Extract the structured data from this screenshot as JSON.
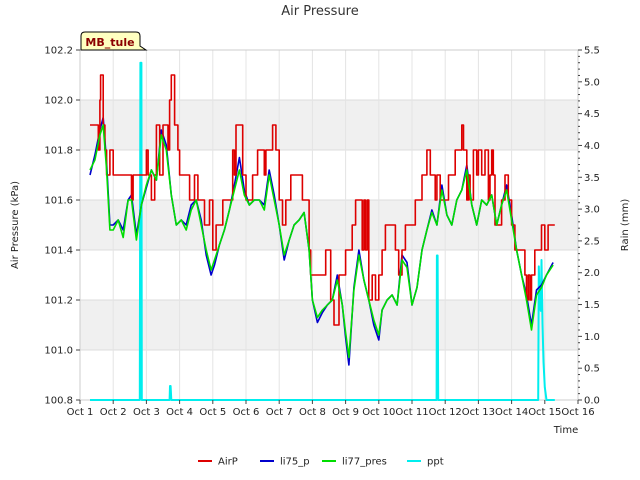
{
  "chart_data": {
    "type": "line",
    "title": "Air Pressure",
    "xlabel": "Time",
    "ylabel": "Air Pressure (kPa)",
    "y2label": "Rain (mm)",
    "site_label": "MB_tule",
    "xlim": [
      1,
      16
    ],
    "ylim": [
      100.8,
      102.2
    ],
    "y2lim": [
      0.0,
      5.5
    ],
    "x_ticks": [
      {
        "value": 1,
        "label": "Oct 1"
      },
      {
        "value": 2,
        "label": "Oct 2"
      },
      {
        "value": 3,
        "label": "Oct 3"
      },
      {
        "value": 4,
        "label": "Oct 4"
      },
      {
        "value": 5,
        "label": "Oct 5"
      },
      {
        "value": 6,
        "label": "Oct 6"
      },
      {
        "value": 7,
        "label": "Oct 7"
      },
      {
        "value": 8,
        "label": "Oct 8"
      },
      {
        "value": 9,
        "label": "Oct 9"
      },
      {
        "value": 10,
        "label": "Oct 10"
      },
      {
        "value": 11,
        "label": "Oct 11"
      },
      {
        "value": 12,
        "label": "Oct 12"
      },
      {
        "value": 13,
        "label": "Oct 13"
      },
      {
        "value": 14,
        "label": "Oct 14"
      },
      {
        "value": 15,
        "label": "Oct 15"
      },
      {
        "value": 16,
        "label": "Oct 16"
      }
    ],
    "y_ticks": [
      "100.8",
      "101.0",
      "101.2",
      "101.4",
      "101.6",
      "101.8",
      "102.0",
      "102.2"
    ],
    "y2_ticks": [
      "0.0",
      "0.5",
      "1.0",
      "1.5",
      "2.0",
      "2.5",
      "3.0",
      "3.5",
      "4.0",
      "4.5",
      "5.0",
      "5.5"
    ],
    "grid": "horizontal bands",
    "legend_position": "bottom-center",
    "series": [
      {
        "name": "AirP",
        "color": "#dd0000",
        "axis": "left",
        "step": true,
        "x": [
          1.3,
          1.5,
          1.55,
          1.6,
          1.62,
          1.7,
          1.75,
          1.8,
          1.9,
          2.0,
          2.5,
          2.55,
          2.6,
          3.0,
          3.05,
          3.15,
          3.25,
          3.3,
          3.4,
          3.5,
          3.65,
          3.7,
          3.75,
          3.85,
          3.95,
          4.0,
          4.3,
          4.45,
          4.55,
          4.7,
          4.75,
          4.9,
          5.0,
          5.1,
          5.15,
          5.3,
          5.4,
          5.6,
          5.65,
          5.7,
          5.75,
          5.9,
          6.0,
          6.2,
          6.35,
          6.55,
          6.6,
          6.8,
          6.9,
          7.0,
          7.1,
          7.2,
          7.35,
          7.5,
          7.7,
          7.9,
          7.95,
          8.2,
          8.4,
          8.55,
          8.65,
          8.8,
          8.9,
          9.0,
          9.2,
          9.3,
          9.5,
          9.55,
          9.6,
          9.65,
          9.7,
          9.8,
          9.9,
          10.0,
          10.1,
          10.2,
          10.4,
          10.5,
          10.6,
          10.7,
          10.8,
          11.0,
          11.1,
          11.3,
          11.45,
          11.55,
          11.7,
          11.75,
          11.85,
          12.0,
          12.1,
          12.3,
          12.5,
          12.55,
          12.65,
          12.7,
          12.75,
          12.85,
          12.95,
          13.0,
          13.1,
          13.2,
          13.3,
          13.35,
          13.4,
          13.45,
          13.5,
          13.7,
          13.8,
          13.9,
          14.0,
          14.1,
          14.2,
          14.4,
          14.45,
          14.5,
          14.55,
          14.6,
          14.7,
          14.8,
          14.9,
          15.0,
          15.1,
          15.3
        ],
        "y": [
          101.9,
          101.9,
          101.8,
          102.0,
          102.1,
          101.9,
          101.8,
          101.7,
          101.8,
          101.7,
          101.7,
          101.6,
          101.7,
          101.8,
          101.7,
          101.6,
          101.7,
          101.9,
          101.7,
          101.9,
          101.8,
          102.0,
          102.1,
          101.9,
          101.8,
          101.7,
          101.6,
          101.7,
          101.6,
          101.6,
          101.5,
          101.6,
          101.4,
          101.5,
          101.5,
          101.6,
          101.6,
          101.8,
          101.7,
          101.9,
          101.9,
          101.7,
          101.6,
          101.7,
          101.8,
          101.7,
          101.8,
          101.9,
          101.8,
          101.6,
          101.5,
          101.6,
          101.7,
          101.7,
          101.6,
          101.4,
          101.3,
          101.3,
          101.4,
          101.2,
          101.1,
          101.3,
          101.3,
          101.4,
          101.5,
          101.6,
          101.4,
          101.6,
          101.4,
          101.6,
          101.2,
          101.3,
          101.2,
          101.3,
          101.4,
          101.5,
          101.5,
          101.4,
          101.3,
          101.4,
          101.5,
          101.5,
          101.6,
          101.7,
          101.8,
          101.7,
          101.6,
          101.7,
          101.6,
          101.6,
          101.7,
          101.8,
          101.9,
          101.8,
          101.6,
          101.7,
          101.6,
          101.8,
          101.7,
          101.8,
          101.7,
          101.8,
          101.6,
          101.7,
          101.8,
          101.7,
          101.5,
          101.6,
          101.7,
          101.6,
          101.5,
          101.4,
          101.4,
          101.3,
          101.2,
          101.3,
          101.2,
          101.3,
          101.4,
          101.4,
          101.5,
          101.4,
          101.5,
          101.5
        ]
      },
      {
        "name": "li75_p",
        "color": "#0000cc",
        "axis": "left",
        "step": false,
        "x": [
          1.3,
          1.45,
          1.6,
          1.7,
          1.8,
          1.9,
          2.0,
          2.15,
          2.3,
          2.45,
          2.55,
          2.7,
          2.85,
          3.0,
          3.15,
          3.3,
          3.45,
          3.6,
          3.75,
          3.9,
          4.05,
          4.2,
          4.35,
          4.5,
          4.65,
          4.8,
          4.95,
          5.05,
          5.2,
          5.35,
          5.5,
          5.65,
          5.8,
          5.95,
          6.1,
          6.25,
          6.4,
          6.55,
          6.7,
          6.85,
          7.0,
          7.15,
          7.3,
          7.45,
          7.6,
          7.75,
          7.9,
          8.0,
          8.15,
          8.3,
          8.45,
          8.6,
          8.75,
          8.9,
          9.0,
          9.1,
          9.25,
          9.4,
          9.55,
          9.7,
          9.85,
          10.0,
          10.1,
          10.25,
          10.4,
          10.55,
          10.7,
          10.85,
          11.0,
          11.15,
          11.3,
          11.45,
          11.6,
          11.75,
          11.9,
          12.05,
          12.2,
          12.35,
          12.5,
          12.65,
          12.8,
          12.95,
          13.1,
          13.25,
          13.4,
          13.55,
          13.7,
          13.85,
          14.0,
          14.15,
          14.3,
          14.45,
          14.6,
          14.75,
          14.9,
          15.05,
          15.25
        ],
        "y": [
          101.7,
          101.78,
          101.88,
          101.93,
          101.75,
          101.5,
          101.5,
          101.52,
          101.48,
          101.6,
          101.62,
          101.46,
          101.58,
          101.65,
          101.72,
          101.68,
          101.88,
          101.82,
          101.62,
          101.5,
          101.52,
          101.5,
          101.58,
          101.6,
          101.52,
          101.38,
          101.3,
          101.34,
          101.42,
          101.48,
          101.56,
          101.66,
          101.77,
          101.64,
          101.58,
          101.6,
          101.6,
          101.58,
          101.72,
          101.62,
          101.5,
          101.36,
          101.44,
          101.5,
          101.52,
          101.55,
          101.4,
          101.2,
          101.11,
          101.15,
          101.18,
          101.2,
          101.3,
          101.18,
          101.05,
          100.94,
          101.25,
          101.4,
          101.28,
          101.2,
          101.1,
          101.04,
          101.16,
          101.2,
          101.22,
          101.18,
          101.38,
          101.35,
          101.18,
          101.25,
          101.4,
          101.48,
          101.56,
          101.5,
          101.66,
          101.54,
          101.5,
          101.6,
          101.64,
          101.74,
          101.58,
          101.5,
          101.6,
          101.58,
          101.62,
          101.5,
          101.58,
          101.66,
          101.54,
          101.4,
          101.3,
          101.22,
          101.1,
          101.24,
          101.26,
          101.3,
          101.35
        ]
      },
      {
        "name": "li77_pres",
        "color": "#00dd00",
        "axis": "left",
        "step": false,
        "x": [
          1.3,
          1.45,
          1.6,
          1.7,
          1.8,
          1.9,
          2.0,
          2.15,
          2.3,
          2.45,
          2.55,
          2.7,
          2.85,
          3.0,
          3.15,
          3.3,
          3.45,
          3.6,
          3.75,
          3.9,
          4.05,
          4.2,
          4.35,
          4.5,
          4.65,
          4.8,
          4.95,
          5.05,
          5.2,
          5.35,
          5.5,
          5.65,
          5.8,
          5.95,
          6.1,
          6.25,
          6.4,
          6.55,
          6.7,
          6.85,
          7.0,
          7.15,
          7.3,
          7.45,
          7.6,
          7.75,
          7.9,
          8.0,
          8.15,
          8.3,
          8.45,
          8.6,
          8.75,
          8.9,
          9.0,
          9.1,
          9.25,
          9.4,
          9.55,
          9.7,
          9.85,
          10.0,
          10.1,
          10.25,
          10.4,
          10.55,
          10.7,
          10.85,
          11.0,
          11.15,
          11.3,
          11.45,
          11.6,
          11.75,
          11.9,
          12.05,
          12.2,
          12.35,
          12.5,
          12.65,
          12.8,
          12.95,
          13.1,
          13.25,
          13.4,
          13.55,
          13.7,
          13.85,
          14.0,
          14.15,
          14.3,
          14.45,
          14.6,
          14.75,
          14.9,
          15.05,
          15.25
        ],
        "y": [
          101.72,
          101.76,
          101.86,
          101.9,
          101.72,
          101.48,
          101.48,
          101.52,
          101.45,
          101.6,
          101.6,
          101.44,
          101.58,
          101.66,
          101.72,
          101.68,
          101.86,
          101.8,
          101.62,
          101.5,
          101.52,
          101.48,
          101.56,
          101.6,
          101.5,
          101.4,
          101.32,
          101.36,
          101.42,
          101.48,
          101.56,
          101.64,
          101.72,
          101.62,
          101.58,
          101.6,
          101.6,
          101.56,
          101.7,
          101.6,
          101.5,
          101.38,
          101.44,
          101.5,
          101.52,
          101.55,
          101.4,
          101.2,
          101.13,
          101.16,
          101.18,
          101.2,
          101.28,
          101.18,
          101.07,
          100.97,
          101.24,
          101.38,
          101.28,
          101.2,
          101.12,
          101.06,
          101.16,
          101.2,
          101.22,
          101.18,
          101.36,
          101.33,
          101.18,
          101.25,
          101.4,
          101.48,
          101.55,
          101.5,
          101.64,
          101.54,
          101.5,
          101.6,
          101.64,
          101.72,
          101.58,
          101.5,
          101.6,
          101.58,
          101.62,
          101.5,
          101.58,
          101.64,
          101.52,
          101.4,
          101.3,
          101.2,
          101.08,
          101.22,
          101.25,
          101.3,
          101.34
        ]
      },
      {
        "name": "ppt",
        "color": "#00eeee",
        "axis": "right",
        "step": false,
        "x": [
          1.3,
          2.8,
          2.82,
          2.83,
          2.85,
          2.86,
          3.0,
          3.7,
          3.71,
          3.73,
          3.75,
          11.74,
          11.75,
          11.77,
          11.79,
          14.8,
          14.82,
          14.85,
          14.88,
          14.9,
          14.93,
          14.96,
          15.0,
          15.05,
          15.1,
          15.3
        ],
        "y": [
          0,
          0,
          5.3,
          2.4,
          5.3,
          0,
          0,
          0,
          0.22,
          0.22,
          0,
          0,
          2.27,
          2.27,
          0,
          0,
          2.1,
          1.5,
          1.4,
          2.2,
          1.2,
          0.6,
          0.2,
          0,
          0,
          0
        ]
      }
    ]
  }
}
